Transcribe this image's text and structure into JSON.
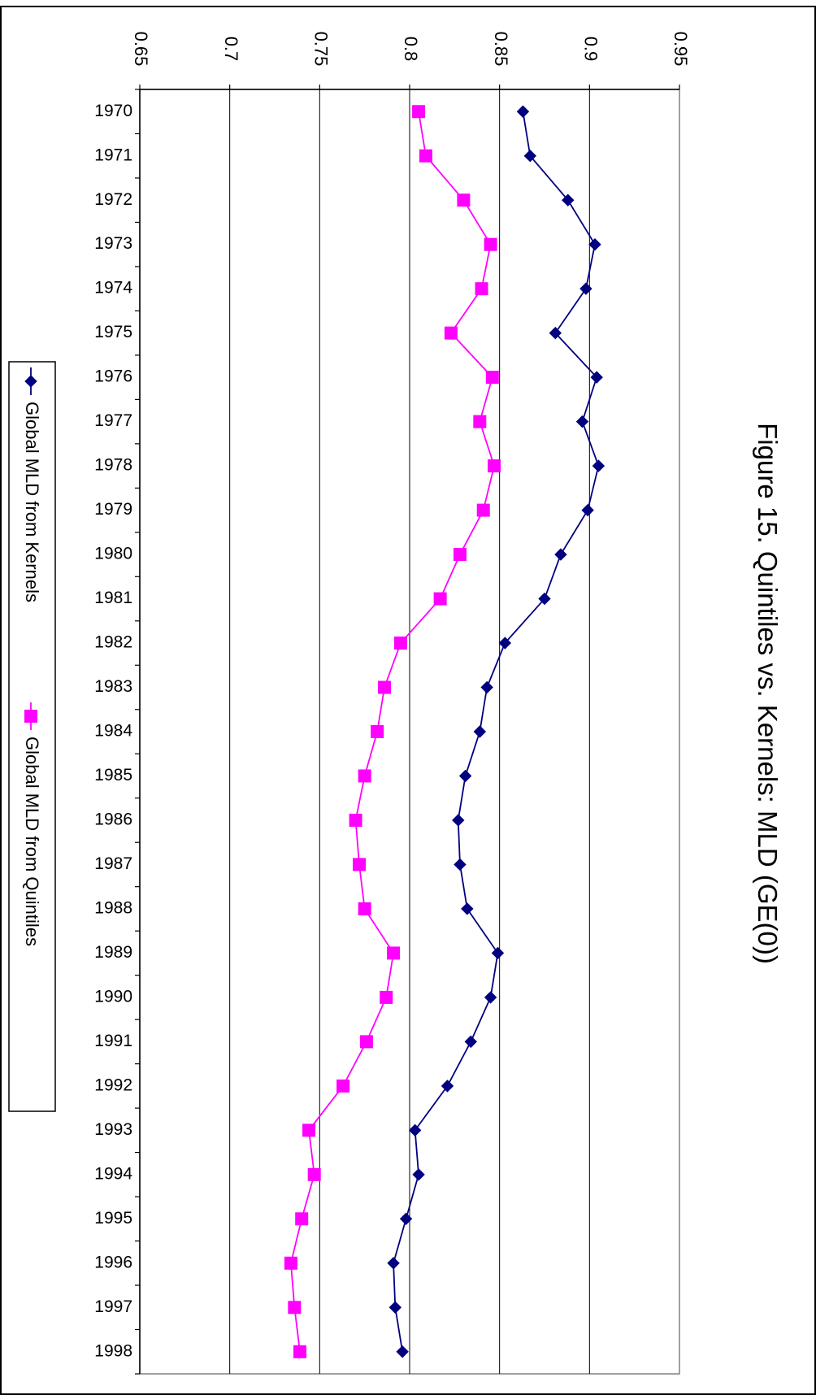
{
  "chart_data": {
    "type": "line",
    "title": "Figure 15. Quintiles vs. Kernels: MLD (GE(0))",
    "xlabel": "",
    "ylabel": "",
    "categories": [
      "1970",
      "1971",
      "1972",
      "1973",
      "1974",
      "1975",
      "1976",
      "1977",
      "1978",
      "1979",
      "1980",
      "1981",
      "1982",
      "1983",
      "1984",
      "1985",
      "1986",
      "1987",
      "1988",
      "1989",
      "1990",
      "1991",
      "1992",
      "1993",
      "1994",
      "1995",
      "1996",
      "1997",
      "1998"
    ],
    "value_axis": {
      "min": 0.65,
      "max": 0.95,
      "tick_labels": [
        "0.65",
        "0.7",
        "0.75",
        "0.8",
        "0.85",
        "0.9",
        "0.95"
      ]
    },
    "grid": true,
    "orientation": "rotated 90° clockwise (years run top to bottom, values increase to the right)",
    "legend_position": "bottom-left",
    "series": [
      {
        "name": "Global MLD from Kernels",
        "color": "#000080",
        "marker": "diamond",
        "values": [
          0.863,
          0.867,
          0.888,
          0.903,
          0.898,
          0.881,
          0.904,
          0.896,
          0.905,
          0.899,
          0.884,
          0.875,
          0.853,
          0.843,
          0.839,
          0.831,
          0.827,
          0.828,
          0.832,
          0.849,
          0.845,
          0.834,
          0.821,
          0.803,
          0.805,
          0.798,
          0.791,
          0.792,
          0.796
        ]
      },
      {
        "name": "Global MLD from Quintiles",
        "color": "#ff00ff",
        "marker": "square",
        "values": [
          0.805,
          0.809,
          0.83,
          0.845,
          0.84,
          0.823,
          0.846,
          0.839,
          0.847,
          0.841,
          0.828,
          0.817,
          0.795,
          0.786,
          0.782,
          0.775,
          0.77,
          0.772,
          0.775,
          0.791,
          0.787,
          0.776,
          0.763,
          0.744,
          0.747,
          0.74,
          0.734,
          0.736,
          0.739
        ]
      }
    ]
  }
}
